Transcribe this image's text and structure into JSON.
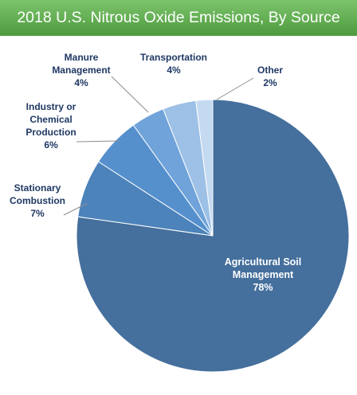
{
  "chart_data": {
    "type": "pie",
    "title": "2018 U.S. Nitrous Oxide Emissions, By Source",
    "slices": [
      {
        "lines": [
          "Agricultural Soil",
          "Management"
        ],
        "pct_label": "78%",
        "value": 78,
        "color": "#456f9c"
      },
      {
        "lines": [
          "Stationary",
          "Combustion"
        ],
        "pct_label": "7%",
        "value": 7,
        "color": "#4c83ba"
      },
      {
        "lines": [
          "Industry or",
          "Chemical",
          "Production"
        ],
        "pct_label": "6%",
        "value": 6,
        "color": "#5590cd"
      },
      {
        "lines": [
          "Manure",
          "Management"
        ],
        "pct_label": "4%",
        "value": 4,
        "color": "#6fa3d9"
      },
      {
        "lines": [
          "Transportation"
        ],
        "pct_label": "4%",
        "value": 4,
        "color": "#9dc0e6"
      },
      {
        "lines": [
          "Other"
        ],
        "pct_label": "2%",
        "value": 2,
        "color": "#c4daf1"
      }
    ],
    "colors": {
      "title_bar": "#5aa848",
      "label_text": "#1f3864"
    }
  }
}
